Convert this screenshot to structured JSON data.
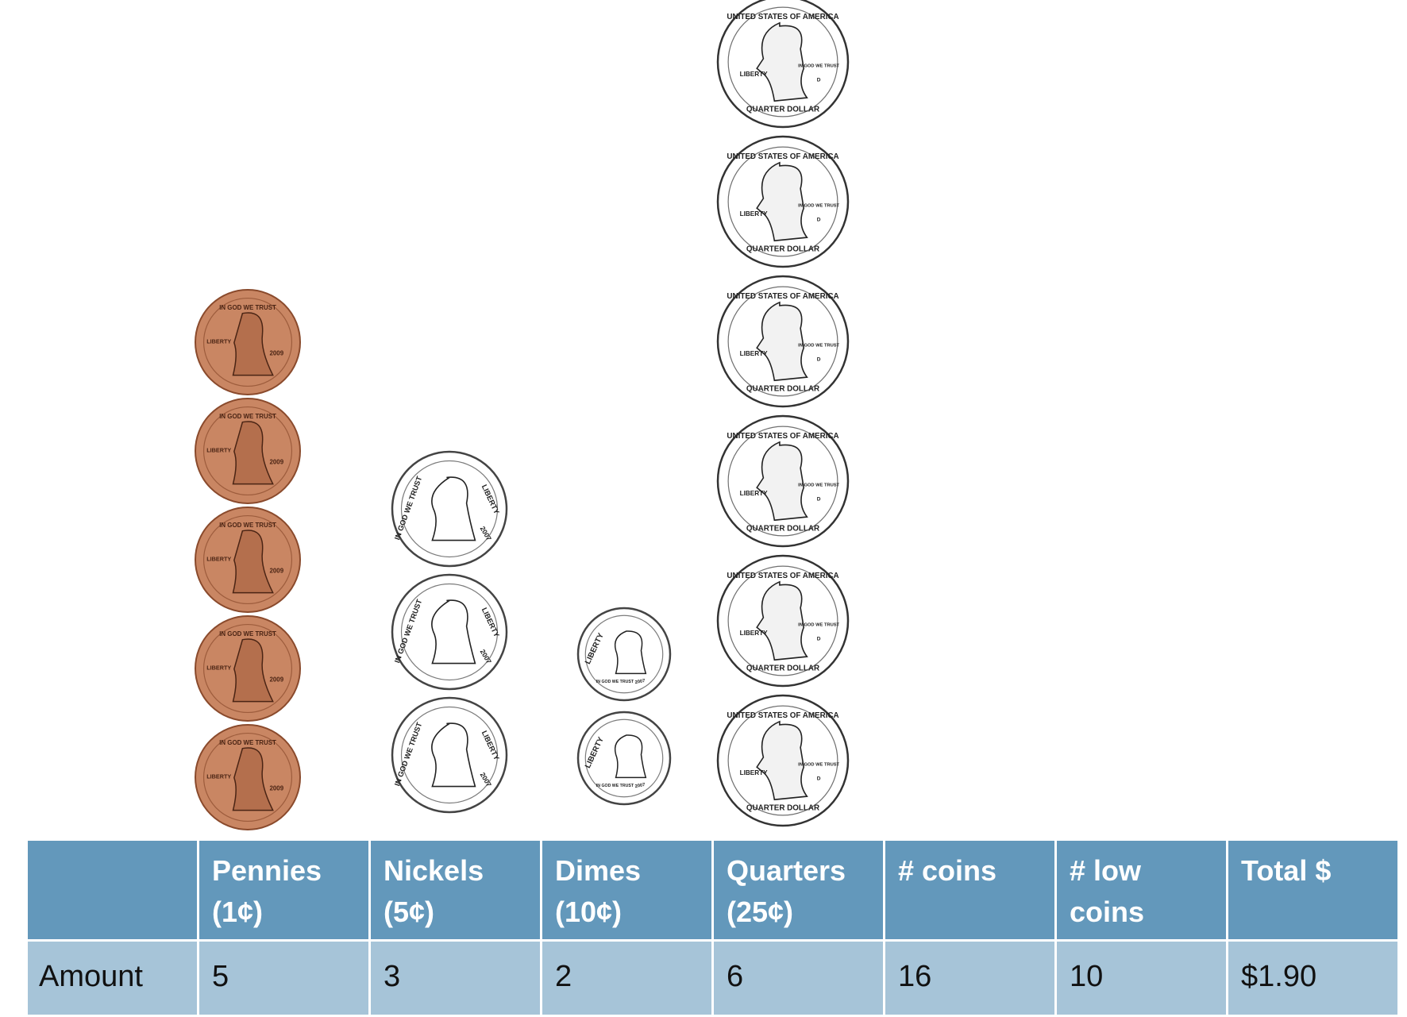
{
  "table": {
    "headers": [
      {
        "line1": "",
        "line2": ""
      },
      {
        "line1": "Pennies",
        "line2": "(1¢)"
      },
      {
        "line1": "Nickels",
        "line2": "(5¢)"
      },
      {
        "line1": "Dimes",
        "line2": "(10¢)"
      },
      {
        "line1": "Quarters",
        "line2": "(25¢)"
      },
      {
        "line1": "# coins",
        "line2": ""
      },
      {
        "line1": "# low",
        "line2": "coins"
      },
      {
        "line1": "Total $",
        "line2": ""
      }
    ],
    "row_label": "Amount",
    "row_values": [
      "5",
      "3",
      "2",
      "6",
      "16",
      "10",
      "$1.90"
    ]
  },
  "coins": {
    "penny": {
      "count": 5,
      "fill": "#c98663",
      "rim": "#8a4a2c",
      "face": "#b46f4d",
      "legend_top": "IN GOD WE TRUST",
      "legend_left": "LIBERTY",
      "year": "2009"
    },
    "nickel": {
      "count": 3,
      "fill": "#ffffff",
      "rim": "#444444",
      "face": "#ffffff",
      "legend_left": "IN GOD WE TRUST",
      "legend_right": "LIBERTY",
      "year": "2007"
    },
    "dime": {
      "count": 2,
      "fill": "#ffffff",
      "rim": "#444444",
      "face": "#ffffff",
      "legend_left": "LIBERTY",
      "legend_bottom": "IN GOD WE TRUST",
      "year": "2007"
    },
    "quarter": {
      "count": 6,
      "fill": "#ffffff",
      "rim": "#333333",
      "face": "#ffffff",
      "legend_top": "UNITED STATES OF AMERICA",
      "legend_left": "LIBERTY",
      "legend_right": "IN GOD WE TRUST",
      "legend_bottom": "QUARTER DOLLAR",
      "mint": "D"
    }
  }
}
